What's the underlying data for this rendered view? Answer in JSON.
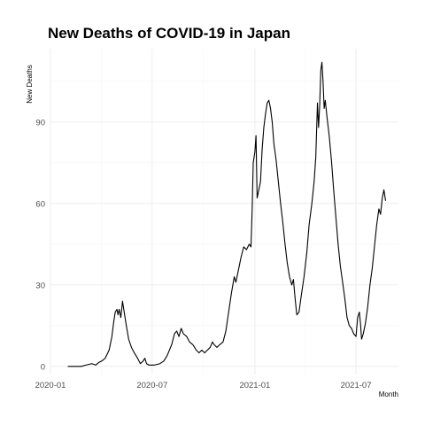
{
  "chart_data": {
    "type": "line",
    "title": "New Deaths of COVID-19 in Japan",
    "xlabel": "Month",
    "ylabel": "New Deaths",
    "grid": true,
    "legend": "none",
    "x_type": "date",
    "xlim": [
      "2020-01-01",
      "2021-09-15"
    ],
    "ylim": [
      -3,
      117
    ],
    "x_ticks": [
      {
        "value": "2020-01-01",
        "label": "2020-01"
      },
      {
        "value": "2020-07-01",
        "label": "2020-07"
      },
      {
        "value": "2021-01-01",
        "label": "2021-01"
      },
      {
        "value": "2021-07-01",
        "label": "2021-07"
      }
    ],
    "y_ticks": [
      0,
      30,
      60,
      90
    ],
    "series": [
      {
        "color": "#000000",
        "points": [
          [
            "2020-02-01",
            0
          ],
          [
            "2020-02-25",
            0
          ],
          [
            "2020-03-05",
            0.5
          ],
          [
            "2020-03-15",
            1
          ],
          [
            "2020-03-22",
            0.5
          ],
          [
            "2020-03-28",
            1.5
          ],
          [
            "2020-04-02",
            2
          ],
          [
            "2020-04-08",
            3
          ],
          [
            "2020-04-15",
            6
          ],
          [
            "2020-04-20",
            11
          ],
          [
            "2020-04-23",
            16
          ],
          [
            "2020-04-26",
            20
          ],
          [
            "2020-04-29",
            21
          ],
          [
            "2020-05-01",
            19
          ],
          [
            "2020-05-03",
            21
          ],
          [
            "2020-05-06",
            18
          ],
          [
            "2020-05-09",
            24
          ],
          [
            "2020-05-12",
            20
          ],
          [
            "2020-05-15",
            16
          ],
          [
            "2020-05-20",
            10
          ],
          [
            "2020-05-25",
            7
          ],
          [
            "2020-05-30",
            5
          ],
          [
            "2020-06-05",
            3
          ],
          [
            "2020-06-10",
            1
          ],
          [
            "2020-06-15",
            2
          ],
          [
            "2020-06-18",
            3
          ],
          [
            "2020-06-21",
            1
          ],
          [
            "2020-06-25",
            0.5
          ],
          [
            "2020-07-05",
            0.5
          ],
          [
            "2020-07-15",
            1
          ],
          [
            "2020-07-22",
            2
          ],
          [
            "2020-07-28",
            4
          ],
          [
            "2020-08-05",
            8
          ],
          [
            "2020-08-10",
            12
          ],
          [
            "2020-08-14",
            13
          ],
          [
            "2020-08-18",
            11
          ],
          [
            "2020-08-22",
            14
          ],
          [
            "2020-08-26",
            12
          ],
          [
            "2020-09-01",
            11
          ],
          [
            "2020-09-06",
            9
          ],
          [
            "2020-09-12",
            8
          ],
          [
            "2020-09-18",
            6
          ],
          [
            "2020-09-23",
            5
          ],
          [
            "2020-09-28",
            6
          ],
          [
            "2020-10-03",
            5
          ],
          [
            "2020-10-08",
            6
          ],
          [
            "2020-10-13",
            7
          ],
          [
            "2020-10-17",
            9
          ],
          [
            "2020-10-20",
            8
          ],
          [
            "2020-10-25",
            7
          ],
          [
            "2020-10-30",
            8
          ],
          [
            "2020-11-05",
            9
          ],
          [
            "2020-11-10",
            13
          ],
          [
            "2020-11-15",
            20
          ],
          [
            "2020-11-20",
            27
          ],
          [
            "2020-11-25",
            33
          ],
          [
            "2020-11-28",
            31
          ],
          [
            "2020-12-02",
            35
          ],
          [
            "2020-12-07",
            40
          ],
          [
            "2020-12-12",
            44
          ],
          [
            "2020-12-17",
            43
          ],
          [
            "2020-12-22",
            45
          ],
          [
            "2020-12-25",
            44
          ],
          [
            "2020-12-27",
            57
          ],
          [
            "2020-12-29",
            75
          ],
          [
            "2021-01-01",
            79
          ],
          [
            "2021-01-03",
            85
          ],
          [
            "2021-01-05",
            62
          ],
          [
            "2021-01-08",
            65
          ],
          [
            "2021-01-11",
            68
          ],
          [
            "2021-01-14",
            80
          ],
          [
            "2021-01-17",
            88
          ],
          [
            "2021-01-20",
            93
          ],
          [
            "2021-01-23",
            97
          ],
          [
            "2021-01-26",
            98
          ],
          [
            "2021-01-29",
            95
          ],
          [
            "2021-02-01",
            90
          ],
          [
            "2021-02-04",
            82
          ],
          [
            "2021-02-08",
            76
          ],
          [
            "2021-02-12",
            68
          ],
          [
            "2021-02-16",
            60
          ],
          [
            "2021-02-20",
            53
          ],
          [
            "2021-02-24",
            45
          ],
          [
            "2021-02-28",
            38
          ],
          [
            "2021-03-04",
            33
          ],
          [
            "2021-03-08",
            30
          ],
          [
            "2021-03-11",
            32
          ],
          [
            "2021-03-14",
            25
          ],
          [
            "2021-03-17",
            19
          ],
          [
            "2021-03-21",
            20
          ],
          [
            "2021-03-25",
            26
          ],
          [
            "2021-03-30",
            33
          ],
          [
            "2021-04-04",
            42
          ],
          [
            "2021-04-08",
            52
          ],
          [
            "2021-04-13",
            60
          ],
          [
            "2021-04-17",
            68
          ],
          [
            "2021-04-20",
            77
          ],
          [
            "2021-04-23",
            97
          ],
          [
            "2021-04-25",
            88
          ],
          [
            "2021-04-27",
            96
          ],
          [
            "2021-04-29",
            109
          ],
          [
            "2021-05-01",
            112
          ],
          [
            "2021-05-03",
            105
          ],
          [
            "2021-05-05",
            95
          ],
          [
            "2021-05-07",
            98
          ],
          [
            "2021-05-10",
            92
          ],
          [
            "2021-05-14",
            85
          ],
          [
            "2021-05-18",
            76
          ],
          [
            "2021-05-22",
            65
          ],
          [
            "2021-05-26",
            55
          ],
          [
            "2021-05-30",
            45
          ],
          [
            "2021-06-03",
            37
          ],
          [
            "2021-06-07",
            31
          ],
          [
            "2021-06-11",
            25
          ],
          [
            "2021-06-15",
            18
          ],
          [
            "2021-06-19",
            15
          ],
          [
            "2021-06-23",
            14
          ],
          [
            "2021-06-27",
            12
          ],
          [
            "2021-07-01",
            11
          ],
          [
            "2021-07-04",
            18
          ],
          [
            "2021-07-07",
            20
          ],
          [
            "2021-07-09",
            16
          ],
          [
            "2021-07-11",
            10
          ],
          [
            "2021-07-14",
            12
          ],
          [
            "2021-07-18",
            16
          ],
          [
            "2021-07-22",
            22
          ],
          [
            "2021-07-26",
            30
          ],
          [
            "2021-07-30",
            36
          ],
          [
            "2021-08-03",
            44
          ],
          [
            "2021-08-07",
            52
          ],
          [
            "2021-08-11",
            58
          ],
          [
            "2021-08-14",
            56
          ],
          [
            "2021-08-17",
            62
          ],
          [
            "2021-08-20",
            65
          ],
          [
            "2021-08-23",
            61
          ]
        ]
      }
    ]
  }
}
